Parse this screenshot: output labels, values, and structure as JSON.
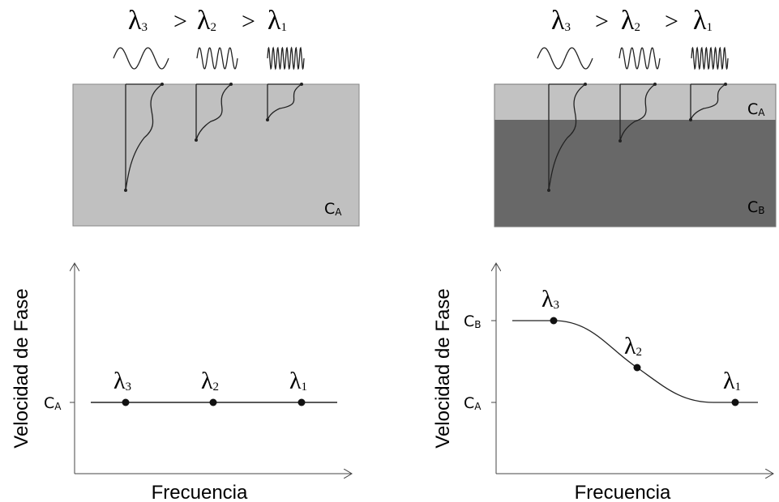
{
  "panels": [
    {
      "wavelengths": [
        {
          "base": "λ",
          "sub": "3"
        },
        {
          "base": "λ",
          "sub": "2"
        },
        {
          "base": "λ",
          "sub": "1"
        }
      ],
      "comparators": [
        ">",
        ">"
      ],
      "layers": [
        {
          "base": "C",
          "sub": "A"
        }
      ],
      "plot": {
        "y_label": "Velocidad de Fase",
        "x_label": "Frecuencia",
        "ticks": [
          {
            "base": "C",
            "sub": "A"
          }
        ],
        "points": [
          {
            "base": "λ",
            "sub": "3"
          },
          {
            "base": "λ",
            "sub": "2"
          },
          {
            "base": "λ",
            "sub": "1"
          }
        ]
      }
    },
    {
      "wavelengths": [
        {
          "base": "λ",
          "sub": "3"
        },
        {
          "base": "λ",
          "sub": "2"
        },
        {
          "base": "λ",
          "sub": "1"
        }
      ],
      "comparators": [
        ">",
        ">"
      ],
      "layers": [
        {
          "base": "C",
          "sub": "A"
        },
        {
          "base": "C",
          "sub": "B"
        }
      ],
      "plot": {
        "y_label": "Velocidad de Fase",
        "x_label": "Frecuencia",
        "ticks": [
          {
            "base": "C",
            "sub": "B"
          },
          {
            "base": "C",
            "sub": "A"
          }
        ],
        "points": [
          {
            "base": "λ",
            "sub": "3"
          },
          {
            "base": "λ",
            "sub": "2"
          },
          {
            "base": "λ",
            "sub": "1"
          }
        ]
      }
    }
  ]
}
